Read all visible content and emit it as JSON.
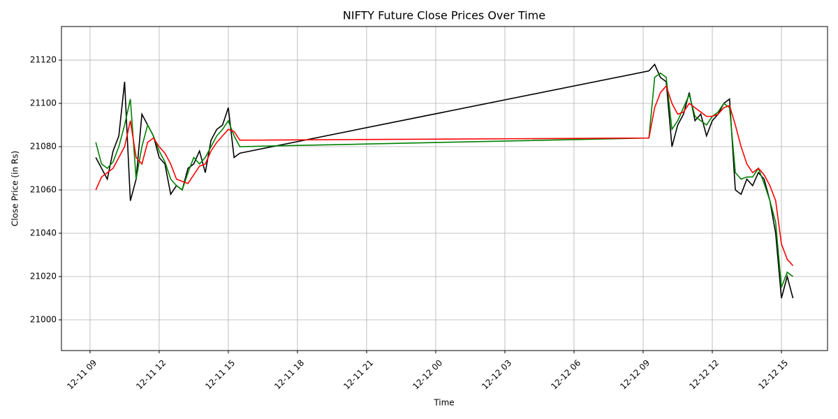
{
  "chart_data": {
    "type": "line",
    "title": "NIFTY Future Close Prices Over Time",
    "x_label": "Time",
    "y_label": "Close Price (in Rs)",
    "x": [
      9.25,
      9.5,
      9.75,
      10,
      10.25,
      10.5,
      10.75,
      11,
      11.25,
      11.5,
      11.75,
      12,
      12.25,
      12.5,
      12.75,
      13,
      13.25,
      13.5,
      13.75,
      14,
      14.25,
      14.5,
      14.75,
      15,
      15.25,
      15.5,
      33.25,
      33.5,
      33.75,
      34,
      34.25,
      34.5,
      34.75,
      35,
      35.25,
      35.5,
      35.75,
      36,
      36.25,
      36.5,
      36.75,
      37,
      37.25,
      37.5,
      37.75,
      38,
      38.25,
      38.5,
      38.75,
      39,
      39.25,
      39.5
    ],
    "series": [
      {
        "color": "#000000",
        "values": [
          21075,
          21070,
          21065,
          21078,
          21085,
          21110,
          21055,
          21065,
          21095,
          21090,
          21085,
          21075,
          21072,
          21058,
          21062,
          21060,
          21070,
          21072,
          21078,
          21068,
          21083,
          21088,
          21090,
          21098,
          21075,
          21077,
          21115,
          21118,
          21112,
          21110,
          21080,
          21090,
          21095,
          21105,
          21092,
          21095,
          21085,
          21092,
          21095,
          21100,
          21102,
          21060,
          21058,
          21065,
          21062,
          21068,
          21065,
          21055,
          21040,
          21010,
          21020,
          21010
        ]
      },
      {
        "color": "#008000",
        "values": [
          21082,
          21072,
          21070,
          21073,
          21080,
          21090,
          21102,
          21065,
          21080,
          21090,
          21085,
          21078,
          21073,
          21065,
          21062,
          21060,
          21068,
          21075,
          21072,
          21075,
          21080,
          21085,
          21088,
          21092,
          21085,
          21080,
          21084,
          21112,
          21114,
          21112,
          21088,
          21092,
          21098,
          21104,
          21094,
          21092,
          21090,
          21094,
          21096,
          21100,
          21098,
          21068,
          21065,
          21066,
          21066,
          21070,
          21063,
          21055,
          21045,
          21015,
          21022,
          21020
        ]
      },
      {
        "color": "#ff0000",
        "values": [
          21060,
          21066,
          21068,
          21070,
          21075,
          21080,
          21092,
          21075,
          21072,
          21082,
          21084,
          21080,
          21077,
          21072,
          21065,
          21064,
          21063,
          21067,
          21071,
          21072,
          21078,
          21082,
          21085,
          21088,
          21087,
          21083,
          21084,
          21098,
          21105,
          21108,
          21100,
          21095,
          21096,
          21100,
          21098,
          21096,
          21094,
          21094,
          21095,
          21098,
          21099,
          21090,
          21080,
          21072,
          21068,
          21070,
          21067,
          21062,
          21055,
          21035,
          21028,
          21025
        ]
      }
    ],
    "xlim": [
      7.76,
      41.0
    ],
    "ylim": [
      20985.8,
      21135.5
    ],
    "xticks": [
      {
        "value": 9,
        "label": "12-11 09"
      },
      {
        "value": 12,
        "label": "12-11 12"
      },
      {
        "value": 15,
        "label": "12-11 15"
      },
      {
        "value": 18,
        "label": "12-11 18"
      },
      {
        "value": 21,
        "label": "12-11 21"
      },
      {
        "value": 24,
        "label": "12-12 00"
      },
      {
        "value": 27,
        "label": "12-12 03"
      },
      {
        "value": 30,
        "label": "12-12 06"
      },
      {
        "value": 33,
        "label": "12-12 09"
      },
      {
        "value": 36,
        "label": "12-12 12"
      },
      {
        "value": 39,
        "label": "12-12 15"
      }
    ],
    "yticks": [
      21000,
      21020,
      21040,
      21060,
      21080,
      21100,
      21120
    ],
    "grid": true
  }
}
